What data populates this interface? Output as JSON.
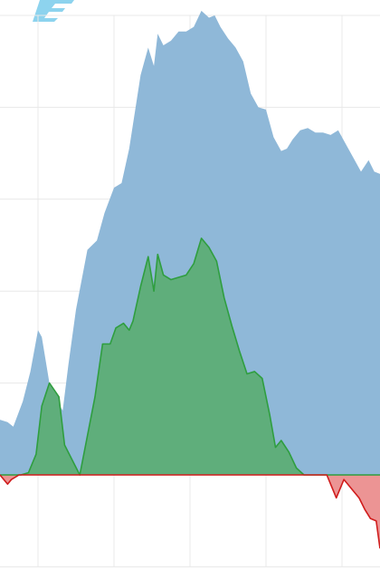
{
  "logo_icon": "brand-logo-icon",
  "colors": {
    "background": "#ffffff",
    "grid": "#e8e8e8",
    "blue_fill": "#8fb8d8",
    "green_fill": "#5fae7b",
    "green_line": "#2f9e3f",
    "red_fill": "#ec9494",
    "red_line": "#d01c1c",
    "logo": "#8dd3ee"
  },
  "chart_data": {
    "type": "area",
    "title": "",
    "xlabel": "",
    "ylabel": "",
    "grid": true,
    "legend": "none",
    "xlim": [
      0,
      100
    ],
    "ylim": [
      -20,
      100
    ],
    "series": [
      {
        "x": [
          0,
          2,
          3.5,
          6,
          8,
          10,
          11,
          13,
          15,
          16.5,
          18,
          20,
          23,
          25.5,
          27.5,
          30,
          32,
          34,
          35.5,
          37,
          39,
          40.5,
          41.5,
          43,
          45,
          47,
          49,
          51,
          53,
          55,
          56.5,
          58,
          60,
          62,
          64,
          66,
          68,
          70,
          72,
          74,
          75.5,
          77,
          79,
          81,
          83,
          85,
          87,
          89,
          91,
          93,
          95,
          97,
          98.5,
          100
        ],
        "y": [
          12,
          11.5,
          10.5,
          16,
          22.5,
          31.5,
          30,
          20,
          16,
          14,
          24,
          36,
          49,
          51,
          57,
          62.5,
          63.5,
          71,
          79,
          87,
          93,
          89,
          96,
          93.5,
          94.5,
          96.5,
          96.5,
          97.5,
          101,
          99.5,
          100,
          97.5,
          95,
          93,
          90,
          83,
          80,
          79.5,
          73.5,
          70.5,
          71,
          73,
          75,
          75.5,
          74.5,
          74.5,
          74,
          75,
          72,
          69,
          66,
          68.5,
          66,
          65.5
        ]
      },
      {
        "x": [
          0,
          3,
          5.5,
          7.5,
          9.5,
          11,
          13,
          15.5,
          17,
          21,
          25,
          27,
          29,
          30.5,
          32.5,
          34,
          35,
          37,
          39,
          40.5,
          41.5,
          43,
          45,
          47,
          49,
          51,
          53,
          55,
          57,
          59,
          61,
          63,
          65,
          67,
          69,
          71,
          72.5,
          74,
          76,
          78,
          80,
          82,
          84,
          86,
          87.5,
          89,
          100
        ],
        "y": [
          0,
          0,
          0,
          0.5,
          4.5,
          15,
          20,
          17,
          6.5,
          0,
          17,
          28.5,
          28.5,
          32,
          33,
          31.5,
          33.5,
          41,
          47.5,
          40,
          48,
          43.5,
          42.5,
          43,
          43.5,
          46,
          51.5,
          49.5,
          46.5,
          38.5,
          32.5,
          27,
          22,
          22.5,
          21,
          13,
          6,
          7.5,
          5,
          1.5,
          0,
          0,
          0,
          0,
          0,
          0,
          0
        ]
      },
      {
        "x": [
          0,
          1,
          2,
          3,
          5,
          86,
          88.5,
          90.5,
          92.5,
          94.5,
          96,
          97.5,
          99,
          100
        ],
        "y": [
          0,
          -1,
          -2,
          -1,
          0,
          0,
          -5,
          -1,
          -3,
          -5,
          -7.5,
          -9.5,
          -10,
          -16
        ]
      }
    ]
  }
}
